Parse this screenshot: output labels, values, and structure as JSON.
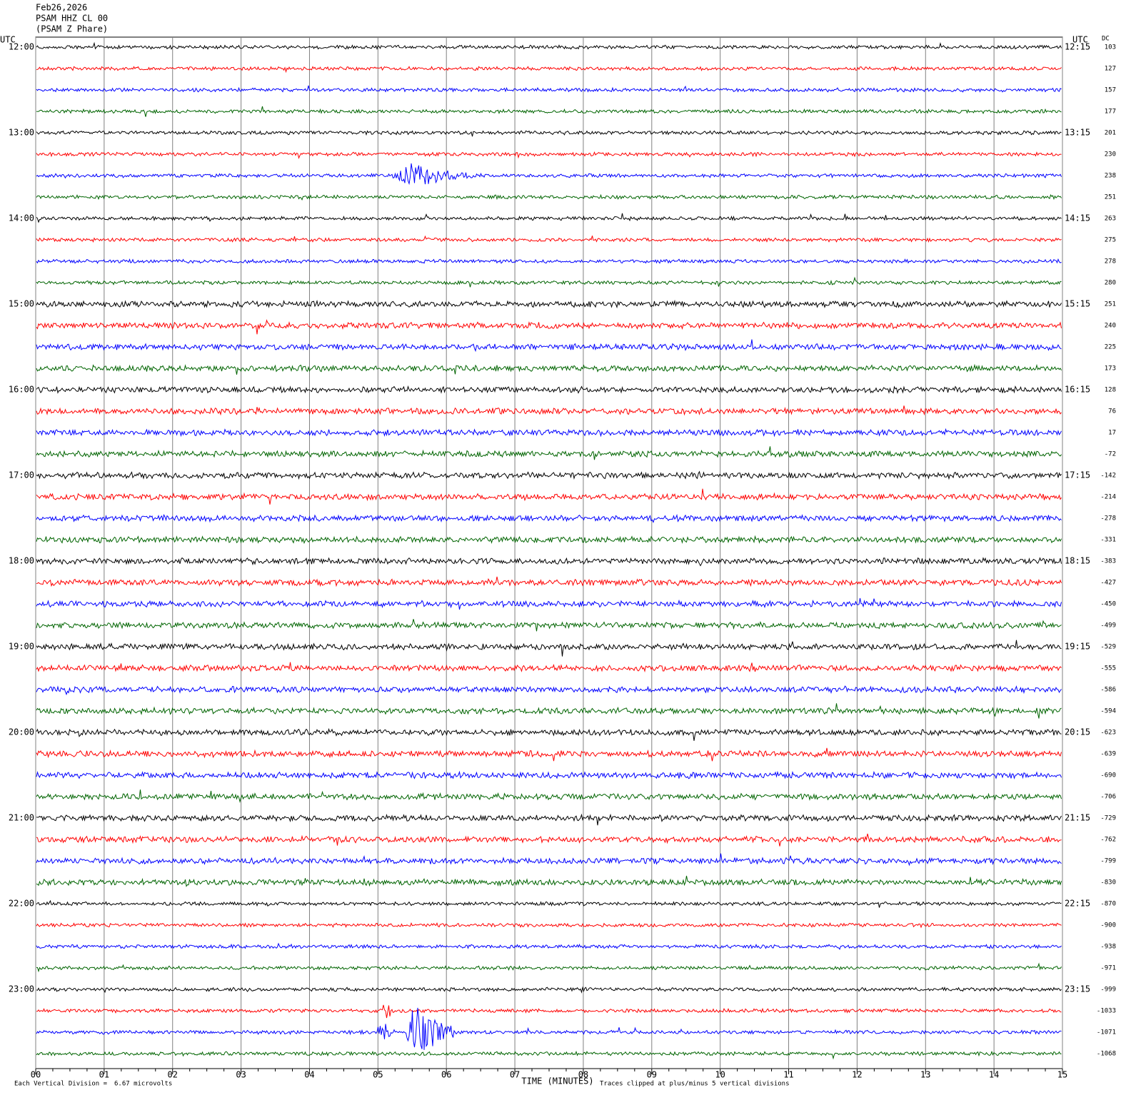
{
  "chart_data": {
    "type": "helicorder",
    "header": [
      "Feb26,2026",
      "PSAM HHZ CL 00",
      "(PSAM Z Phare)"
    ],
    "left_axis_title": "UTC",
    "right_axis_title": "UTC",
    "dc_title": "DC",
    "left_labels": [
      "12:00",
      "13:00",
      "14:00",
      "15:00",
      "16:00",
      "17:00",
      "18:00",
      "19:00",
      "20:00",
      "21:00",
      "22:00",
      "23:00"
    ],
    "right_labels": [
      "12:15",
      "13:15",
      "14:15",
      "15:15",
      "16:15",
      "17:15",
      "18:15",
      "19:15",
      "20:15",
      "21:15",
      "22:15",
      "23:15"
    ],
    "dc_values": [
      103,
      127,
      157,
      177,
      201,
      230,
      238,
      251,
      263,
      275,
      278,
      280,
      251,
      240,
      225,
      173,
      128,
      76,
      17,
      -72,
      -142,
      -214,
      -278,
      -331,
      -383,
      -427,
      -450,
      -499,
      -529,
      -555,
      -586,
      -594,
      -623,
      -639,
      -690,
      -706,
      -729,
      -762,
      -799,
      -830,
      -870,
      -900,
      -938,
      -971,
      -999,
      -1033,
      -1071,
      -1068
    ],
    "trace_colors": [
      "#000000",
      "#ff0000",
      "#0000ff",
      "#006400"
    ],
    "xlim": [
      0,
      15
    ],
    "xticks": [
      {
        "value": 0,
        "label": "00"
      },
      {
        "value": 1,
        "label": "01"
      },
      {
        "value": 2,
        "label": "02"
      },
      {
        "value": 3,
        "label": "03"
      },
      {
        "value": 4,
        "label": "04"
      },
      {
        "value": 5,
        "label": "05"
      },
      {
        "value": 6,
        "label": "06"
      },
      {
        "value": 7,
        "label": "07"
      },
      {
        "value": 8,
        "label": "08"
      },
      {
        "value": 9,
        "label": "09"
      },
      {
        "value": 10,
        "label": "10"
      },
      {
        "value": 11,
        "label": "11"
      },
      {
        "value": 12,
        "label": "12"
      },
      {
        "value": 13,
        "label": "13"
      },
      {
        "value": 14,
        "label": "14"
      },
      {
        "value": 15,
        "label": "15"
      }
    ],
    "xlabel": "TIME (MINUTES)",
    "scale_note": "Each Vertical Division =",
    "scale_value": "6.67 microvolts",
    "clip_note": "Traces clipped at plus/minus 5 vertical divisions",
    "grid": true
  }
}
